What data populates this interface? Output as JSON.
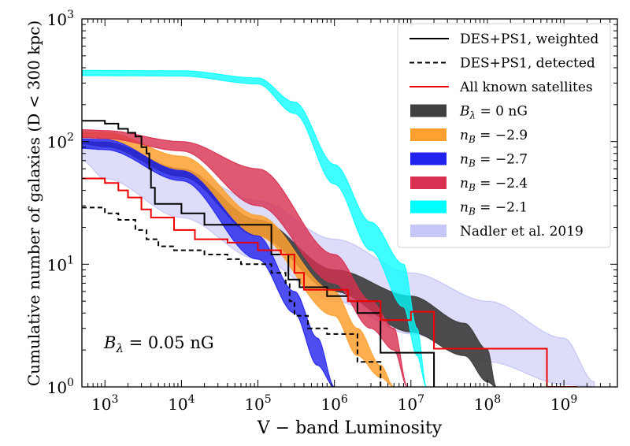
{
  "chart_data": {
    "type": "line",
    "title": "",
    "xlabel": "V − band Luminosity",
    "ylabel": "Cumulative number of galaxies (D < 300 kpc)",
    "xscale": "log",
    "yscale": "log",
    "xlim": [
      500,
      5000000000
    ],
    "ylim": [
      1,
      1000
    ],
    "xticks": [
      {
        "value": 1000,
        "base": "10",
        "exp": "3"
      },
      {
        "value": 10000,
        "base": "10",
        "exp": "4"
      },
      {
        "value": 100000,
        "base": "10",
        "exp": "5"
      },
      {
        "value": 1000000,
        "base": "10",
        "exp": "6"
      },
      {
        "value": 10000000,
        "base": "10",
        "exp": "7"
      },
      {
        "value": 100000000,
        "base": "10",
        "exp": "8"
      },
      {
        "value": 1000000000,
        "base": "10",
        "exp": "9"
      }
    ],
    "yticks": [
      {
        "value": 1,
        "base": "10",
        "exp": "0"
      },
      {
        "value": 10,
        "base": "10",
        "exp": "1"
      },
      {
        "value": 100,
        "base": "10",
        "exp": "2"
      },
      {
        "value": 1000,
        "base": "10",
        "exp": "3"
      }
    ],
    "annotation": "Bλ = 0.05 nG",
    "legend_position": "top-right",
    "bands": [
      {
        "name": "Nadler et al. 2019",
        "color": "#8f8ff0",
        "opacity": 0.3,
        "x": [
          500,
          1000,
          10000,
          100000,
          1000000,
          10000000,
          100000000,
          1000000000,
          2500000000
        ],
        "upper": [
          110,
          100,
          58,
          33,
          16,
          8.5,
          5,
          2.5,
          1.1
        ],
        "lower": [
          70,
          50,
          24,
          11,
          5,
          2.7,
          1.6,
          1.05,
          1.0
        ]
      },
      {
        "name": "Bλ = 0 nG",
        "color": "#404040",
        "opacity": 0.93,
        "x": [
          500,
          1000,
          10000,
          100000,
          1000000,
          10000000,
          50000000,
          100000000,
          130000000
        ],
        "upper": [
          100,
          99,
          60,
          23,
          9,
          5.5,
          3.3,
          2,
          1.0
        ],
        "lower": [
          96,
          91,
          52,
          17,
          6,
          2.8,
          1.8,
          1.1,
          1.0
        ]
      },
      {
        "name": "nB = −2.9",
        "color": "#ffa030",
        "opacity": 0.85,
        "x": [
          500,
          1000,
          10000,
          100000,
          1000000,
          2000000,
          4000000,
          6000000
        ],
        "upper": [
          120,
          119,
          76,
          25,
          6,
          3,
          1.5,
          1.0
        ],
        "lower": [
          108,
          106,
          58,
          17,
          3.8,
          1.8,
          1.2,
          1.0
        ]
      },
      {
        "name": "nB = −2.7",
        "color": "#2222ee",
        "opacity": 0.8,
        "x": [
          500,
          1000,
          10000,
          100000,
          300000,
          600000,
          1000000
        ],
        "upper": [
          105,
          104,
          58,
          17,
          6,
          2.5,
          1.0
        ],
        "lower": [
          88,
          86,
          48,
          11,
          4,
          1.5,
          1.0
        ]
      },
      {
        "name": "nB = −2.4",
        "color": "#d83050",
        "opacity": 0.8,
        "x": [
          500,
          1000,
          10000,
          100000,
          1000000,
          3000000,
          6000000,
          9000000
        ],
        "upper": [
          125,
          123,
          100,
          60,
          12,
          5,
          3,
          1.0
        ],
        "lower": [
          108,
          106,
          84,
          30,
          7,
          3,
          2,
          1.0
        ]
      },
      {
        "name": "nB = −2.1",
        "color": "#00ffff",
        "opacity": 0.75,
        "x": [
          500,
          10000,
          100000,
          300000,
          1000000,
          3000000,
          8000000,
          12000000,
          16000000
        ],
        "upper": [
          380,
          378,
          330,
          210,
          65,
          22,
          10,
          3,
          1.0
        ],
        "lower": [
          345,
          342,
          295,
          170,
          45,
          13,
          4.5,
          1.8,
          1.0
        ]
      }
    ],
    "lines": [
      {
        "name": "DES+PS1, weighted",
        "color": "#000000",
        "style": "solid",
        "width": 2,
        "points": [
          [
            500,
            148
          ],
          [
            1000,
            148
          ],
          [
            1000,
            140
          ],
          [
            1500,
            140
          ],
          [
            1500,
            127
          ],
          [
            2000,
            127
          ],
          [
            2000,
            118
          ],
          [
            2500,
            118
          ],
          [
            2500,
            110
          ],
          [
            3000,
            110
          ],
          [
            3000,
            90
          ],
          [
            3500,
            90
          ],
          [
            3500,
            80
          ],
          [
            3800,
            80
          ],
          [
            3800,
            60
          ],
          [
            4000,
            60
          ],
          [
            4000,
            42
          ],
          [
            4500,
            42
          ],
          [
            4500,
            31
          ],
          [
            10000,
            31
          ],
          [
            10000,
            26
          ],
          [
            20000,
            26
          ],
          [
            20000,
            21
          ],
          [
            150000,
            21
          ],
          [
            150000,
            12
          ],
          [
            250000,
            12
          ],
          [
            250000,
            7.5
          ],
          [
            350000,
            7.5
          ],
          [
            350000,
            6.5
          ],
          [
            800000,
            6.5
          ],
          [
            800000,
            5.5
          ],
          [
            1500000,
            5.5
          ],
          [
            1500000,
            5
          ],
          [
            2000000,
            5
          ],
          [
            2000000,
            4
          ],
          [
            4000000,
            4
          ],
          [
            4000000,
            1.9
          ],
          [
            20000000,
            1.9
          ],
          [
            20000000,
            1.0
          ]
        ]
      },
      {
        "name": "DES+PS1, detected",
        "color": "#000000",
        "style": "dashed",
        "width": 2,
        "points": [
          [
            500,
            29
          ],
          [
            1000,
            29
          ],
          [
            1000,
            26
          ],
          [
            1500,
            26
          ],
          [
            1500,
            23
          ],
          [
            2500,
            23
          ],
          [
            2500,
            19
          ],
          [
            3500,
            19
          ],
          [
            3500,
            16
          ],
          [
            5000,
            16
          ],
          [
            5000,
            14
          ],
          [
            8000,
            14
          ],
          [
            8000,
            13
          ],
          [
            20000,
            13
          ],
          [
            20000,
            12
          ],
          [
            40000,
            12
          ],
          [
            40000,
            11
          ],
          [
            60000,
            11
          ],
          [
            60000,
            10
          ],
          [
            150000,
            10
          ],
          [
            150000,
            8.5
          ],
          [
            230000,
            8.5
          ],
          [
            230000,
            7
          ],
          [
            260000,
            7
          ],
          [
            260000,
            5
          ],
          [
            300000,
            5
          ],
          [
            300000,
            3.8
          ],
          [
            450000,
            3.8
          ],
          [
            450000,
            3
          ],
          [
            800000,
            3
          ],
          [
            800000,
            2.7
          ],
          [
            2000000,
            2.7
          ],
          [
            2000000,
            1.6
          ],
          [
            4000000,
            1.6
          ],
          [
            4000000,
            1.0
          ]
        ]
      },
      {
        "name": "All known satellites",
        "color": "#ee0000",
        "style": "solid",
        "width": 2,
        "points": [
          [
            500,
            50
          ],
          [
            1000,
            50
          ],
          [
            1000,
            46
          ],
          [
            1500,
            46
          ],
          [
            1500,
            40
          ],
          [
            2000,
            40
          ],
          [
            2000,
            35
          ],
          [
            3000,
            35
          ],
          [
            3000,
            28
          ],
          [
            4000,
            28
          ],
          [
            4000,
            24
          ],
          [
            8000,
            24
          ],
          [
            8000,
            19
          ],
          [
            15000,
            19
          ],
          [
            15000,
            16
          ],
          [
            40000,
            16
          ],
          [
            40000,
            15
          ],
          [
            100000,
            15
          ],
          [
            100000,
            13
          ],
          [
            200000,
            13
          ],
          [
            200000,
            12
          ],
          [
            300000,
            12
          ],
          [
            300000,
            8.5
          ],
          [
            400000,
            8.5
          ],
          [
            400000,
            6.2
          ],
          [
            1500000,
            6.2
          ],
          [
            1500000,
            5
          ],
          [
            4000000,
            5
          ],
          [
            4000000,
            3.5
          ],
          [
            10000000,
            3.5
          ],
          [
            10000000,
            4.1
          ],
          [
            20000000,
            4.1
          ],
          [
            20000000,
            2.05
          ],
          [
            600000000,
            2.05
          ],
          [
            600000000,
            1.0
          ],
          [
            1500000000,
            1.0
          ]
        ]
      }
    ],
    "legend": [
      {
        "label": "DES+PS1, weighted",
        "kind": "line",
        "color": "#000000",
        "style": "solid"
      },
      {
        "label": "DES+PS1, detected",
        "kind": "line",
        "color": "#000000",
        "style": "dashed"
      },
      {
        "label": "All known satellites",
        "kind": "line",
        "color": "#ee0000",
        "style": "solid"
      },
      {
        "label": "Bλ = 0 nG",
        "kind": "patch",
        "color": "#404040"
      },
      {
        "label": "nB = −2.9",
        "kind": "patch",
        "color": "#ffa030"
      },
      {
        "label": "nB = −2.7",
        "kind": "patch",
        "color": "#2222ee"
      },
      {
        "label": "nB = −2.4",
        "kind": "patch",
        "color": "#d83050"
      },
      {
        "label": "nB = −2.1",
        "kind": "patch",
        "color": "#00ffff"
      },
      {
        "label": "Nadler et al. 2019",
        "kind": "patch",
        "color": "#c8c8f8"
      }
    ]
  }
}
